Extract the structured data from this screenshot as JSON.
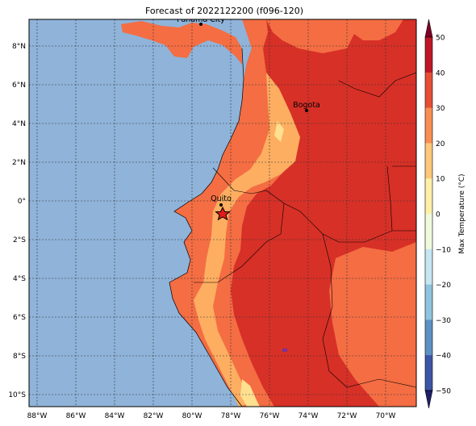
{
  "title": "Forecast of 2022122200 (f096-120)",
  "map": {
    "lon_ticks": [
      "88°W",
      "86°W",
      "84°W",
      "82°W",
      "80°W",
      "78°W",
      "76°W",
      "74°W",
      "72°W",
      "70°W"
    ],
    "lat_ticks": [
      "8°N",
      "6°N",
      "4°N",
      "2°N",
      "0°",
      "2°S",
      "4°S",
      "6°S",
      "8°S",
      "10°S"
    ],
    "cities": [
      {
        "name": "Panama City",
        "kind": "dot"
      },
      {
        "name": "Bogota",
        "kind": "dot"
      },
      {
        "name": "Quito",
        "kind": "dot"
      },
      {
        "name": "",
        "kind": "star"
      }
    ],
    "colors": {
      "ocean": "#8fb3d9",
      "hot": "#d73027",
      "warm": "#f46d43",
      "mild": "#fdae61",
      "cool": "#fee090"
    }
  },
  "colorbar": {
    "label": "Max Temperature (°C)",
    "ticks": [
      "50",
      "40",
      "30",
      "20",
      "10",
      "0",
      "−10",
      "−20",
      "−30",
      "−40",
      "−50"
    ],
    "colors": [
      "#a50026",
      "#d73027",
      "#f46d43",
      "#fdae61",
      "#fee090",
      "#ffffbf",
      "#e0f3f8",
      "#abd9e9",
      "#74add1",
      "#4575b4",
      "#313695"
    ]
  }
}
